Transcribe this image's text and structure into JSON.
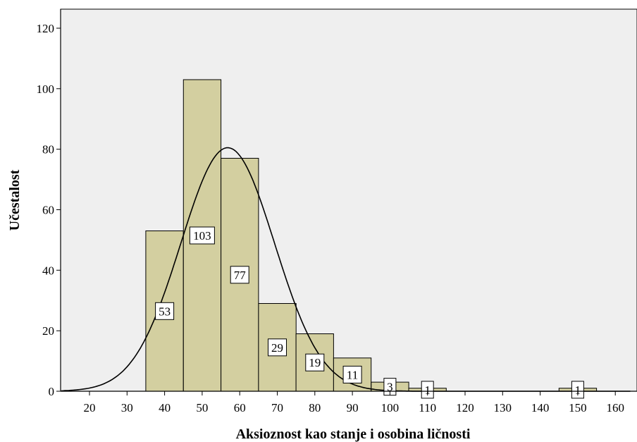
{
  "chart_data": {
    "type": "bar",
    "title": "",
    "xlabel": "Aksioznost kao stanje i osobina ličnosti",
    "ylabel": "Učestalost",
    "xlim": [
      12,
      164
    ],
    "ylim": [
      0,
      125
    ],
    "xticks": [
      "20",
      "30",
      "40",
      "50",
      "60",
      "70",
      "80",
      "90",
      "100",
      "110",
      "120",
      "130",
      "140",
      "150",
      "160"
    ],
    "yticks": [
      "0",
      "20",
      "40",
      "60",
      "80",
      "100",
      "120"
    ],
    "bin_width": 10,
    "bins": [
      {
        "x": 40,
        "value": 53,
        "label": "53"
      },
      {
        "x": 50,
        "value": 103,
        "label": "103"
      },
      {
        "x": 60,
        "value": 77,
        "label": "77"
      },
      {
        "x": 70,
        "value": 29,
        "label": "29"
      },
      {
        "x": 80,
        "value": 19,
        "label": "19"
      },
      {
        "x": 90,
        "value": 11,
        "label": "11"
      },
      {
        "x": 100,
        "value": 3,
        "label": "3"
      },
      {
        "x": 110,
        "value": 1,
        "label": "1"
      },
      {
        "x": 150,
        "value": 1,
        "label": "1"
      }
    ],
    "normal_curve": {
      "mean": 56.8,
      "peak": 80.5,
      "sd": 12.5
    },
    "grid": false,
    "colors": {
      "bar": "#d3cfa0",
      "background": "#efefef"
    }
  }
}
